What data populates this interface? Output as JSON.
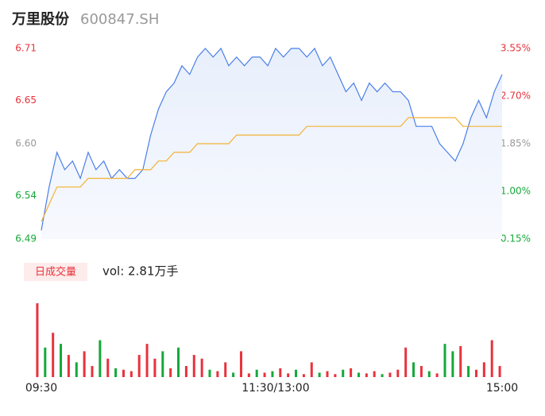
{
  "chart_data": [
    {
      "type": "line",
      "title": "万里股份",
      "subtitle": "600847.SH",
      "categories": [
        "09:30",
        null,
        null,
        null,
        null,
        null,
        null,
        null,
        null,
        null,
        null,
        null,
        null,
        null,
        null,
        null,
        null,
        null,
        null,
        null,
        null,
        null,
        null,
        null,
        null,
        null,
        null,
        null,
        null,
        null,
        "11:30/13:00",
        null,
        null,
        null,
        null,
        null,
        null,
        null,
        null,
        null,
        null,
        null,
        null,
        null,
        null,
        null,
        null,
        null,
        null,
        null,
        null,
        null,
        null,
        null,
        null,
        null,
        null,
        null,
        null,
        "15:00"
      ],
      "series": [
        {
          "color": "#4a7fe8",
          "values": [
            6.5,
            6.55,
            6.59,
            6.57,
            6.58,
            6.56,
            6.59,
            6.57,
            6.58,
            6.56,
            6.57,
            6.56,
            6.56,
            6.57,
            6.61,
            6.64,
            6.66,
            6.67,
            6.69,
            6.68,
            6.7,
            6.71,
            6.7,
            6.71,
            6.69,
            6.7,
            6.69,
            6.7,
            6.7,
            6.69,
            6.71,
            6.7,
            6.71,
            6.71,
            6.7,
            6.71,
            6.69,
            6.7,
            6.68,
            6.66,
            6.67,
            6.65,
            6.67,
            6.66,
            6.67,
            6.66,
            6.66,
            6.65,
            6.62,
            6.62,
            6.62,
            6.6,
            6.59,
            6.58,
            6.6,
            6.63,
            6.65,
            6.63,
            6.66,
            6.68
          ]
        },
        {
          "color": "#f2b233",
          "values": [
            6.51,
            6.53,
            6.55,
            6.55,
            6.55,
            6.55,
            6.56,
            6.56,
            6.56,
            6.56,
            6.56,
            6.56,
            6.57,
            6.57,
            6.57,
            6.58,
            6.58,
            6.59,
            6.59,
            6.59,
            6.6,
            6.6,
            6.6,
            6.6,
            6.6,
            6.61,
            6.61,
            6.61,
            6.61,
            6.61,
            6.61,
            6.61,
            6.61,
            6.61,
            6.62,
            6.62,
            6.62,
            6.62,
            6.62,
            6.62,
            6.62,
            6.62,
            6.62,
            6.62,
            6.62,
            6.62,
            6.62,
            6.63,
            6.63,
            6.63,
            6.63,
            6.63,
            6.63,
            6.63,
            6.62,
            6.62,
            6.62,
            6.62,
            6.62,
            6.62
          ]
        }
      ],
      "ylim": [
        6.49,
        6.71
      ],
      "yticks": [
        6.71,
        6.65,
        {
          "value": 6.6,
          "label": "6.60"
        },
        6.54,
        6.49
      ],
      "y2lim": [
        0.15,
        3.55
      ],
      "y2ticks": [
        {
          "value": 3.55,
          "label": "3.55%"
        },
        {
          "value": 2.7,
          "label": "2.70%"
        },
        {
          "value": 1.85,
          "label": "1.85%"
        },
        {
          "value": 1,
          "label": "1.00%"
        },
        {
          "value": 0.15,
          "label": "0.15%"
        }
      ],
      "tick_colors": [
        "#e8323c",
        "#e8323c",
        "#999999",
        "#15a83a",
        "#15a83a"
      ]
    },
    {
      "type": "bar",
      "title": "日成交量",
      "subtitle": "vol: 2.81万手",
      "values": [
        100,
        40,
        60,
        45,
        30,
        20,
        35,
        15,
        50,
        25,
        12,
        10,
        8,
        30,
        45,
        25,
        35,
        12,
        40,
        15,
        30,
        25,
        10,
        8,
        20,
        6,
        35,
        5,
        10,
        6,
        8,
        12,
        5,
        10,
        4,
        20,
        6,
        8,
        4,
        10,
        12,
        6,
        5,
        8,
        4,
        6,
        10,
        40,
        20,
        15,
        8,
        5,
        45,
        35,
        42,
        15,
        10,
        20,
        50,
        15
      ],
      "colors": [
        "#e8323c",
        "#15a83a",
        "#e8323c",
        "#15a83a",
        "#e8323c",
        "#15a83a",
        "#e8323c",
        "#e8323c",
        "#15a83a",
        "#e8323c",
        "#15a83a",
        "#e8323c",
        "#e8323c",
        "#e8323c",
        "#e8323c",
        "#e8323c",
        "#15a83a",
        "#e8323c",
        "#15a83a",
        "#e8323c",
        "#e8323c",
        "#e8323c",
        "#15a83a",
        "#e8323c",
        "#e8323c",
        "#15a83a",
        "#e8323c",
        "#e8323c",
        "#15a83a",
        "#e8323c",
        "#15a83a",
        "#e8323c",
        "#e8323c",
        "#15a83a",
        "#e8323c",
        "#e8323c",
        "#15a83a",
        "#e8323c",
        "#e8323c",
        "#15a83a",
        "#e8323c",
        "#15a83a",
        "#e8323c",
        "#e8323c",
        "#15a83a",
        "#e8323c",
        "#e8323c",
        "#e8323c",
        "#15a83a",
        "#e8323c",
        "#15a83a",
        "#e8323c",
        "#15a83a",
        "#15a83a",
        "#e8323c",
        "#15a83a",
        "#e8323c",
        "#e8323c",
        "#e8323c",
        "#e8323c"
      ]
    }
  ]
}
